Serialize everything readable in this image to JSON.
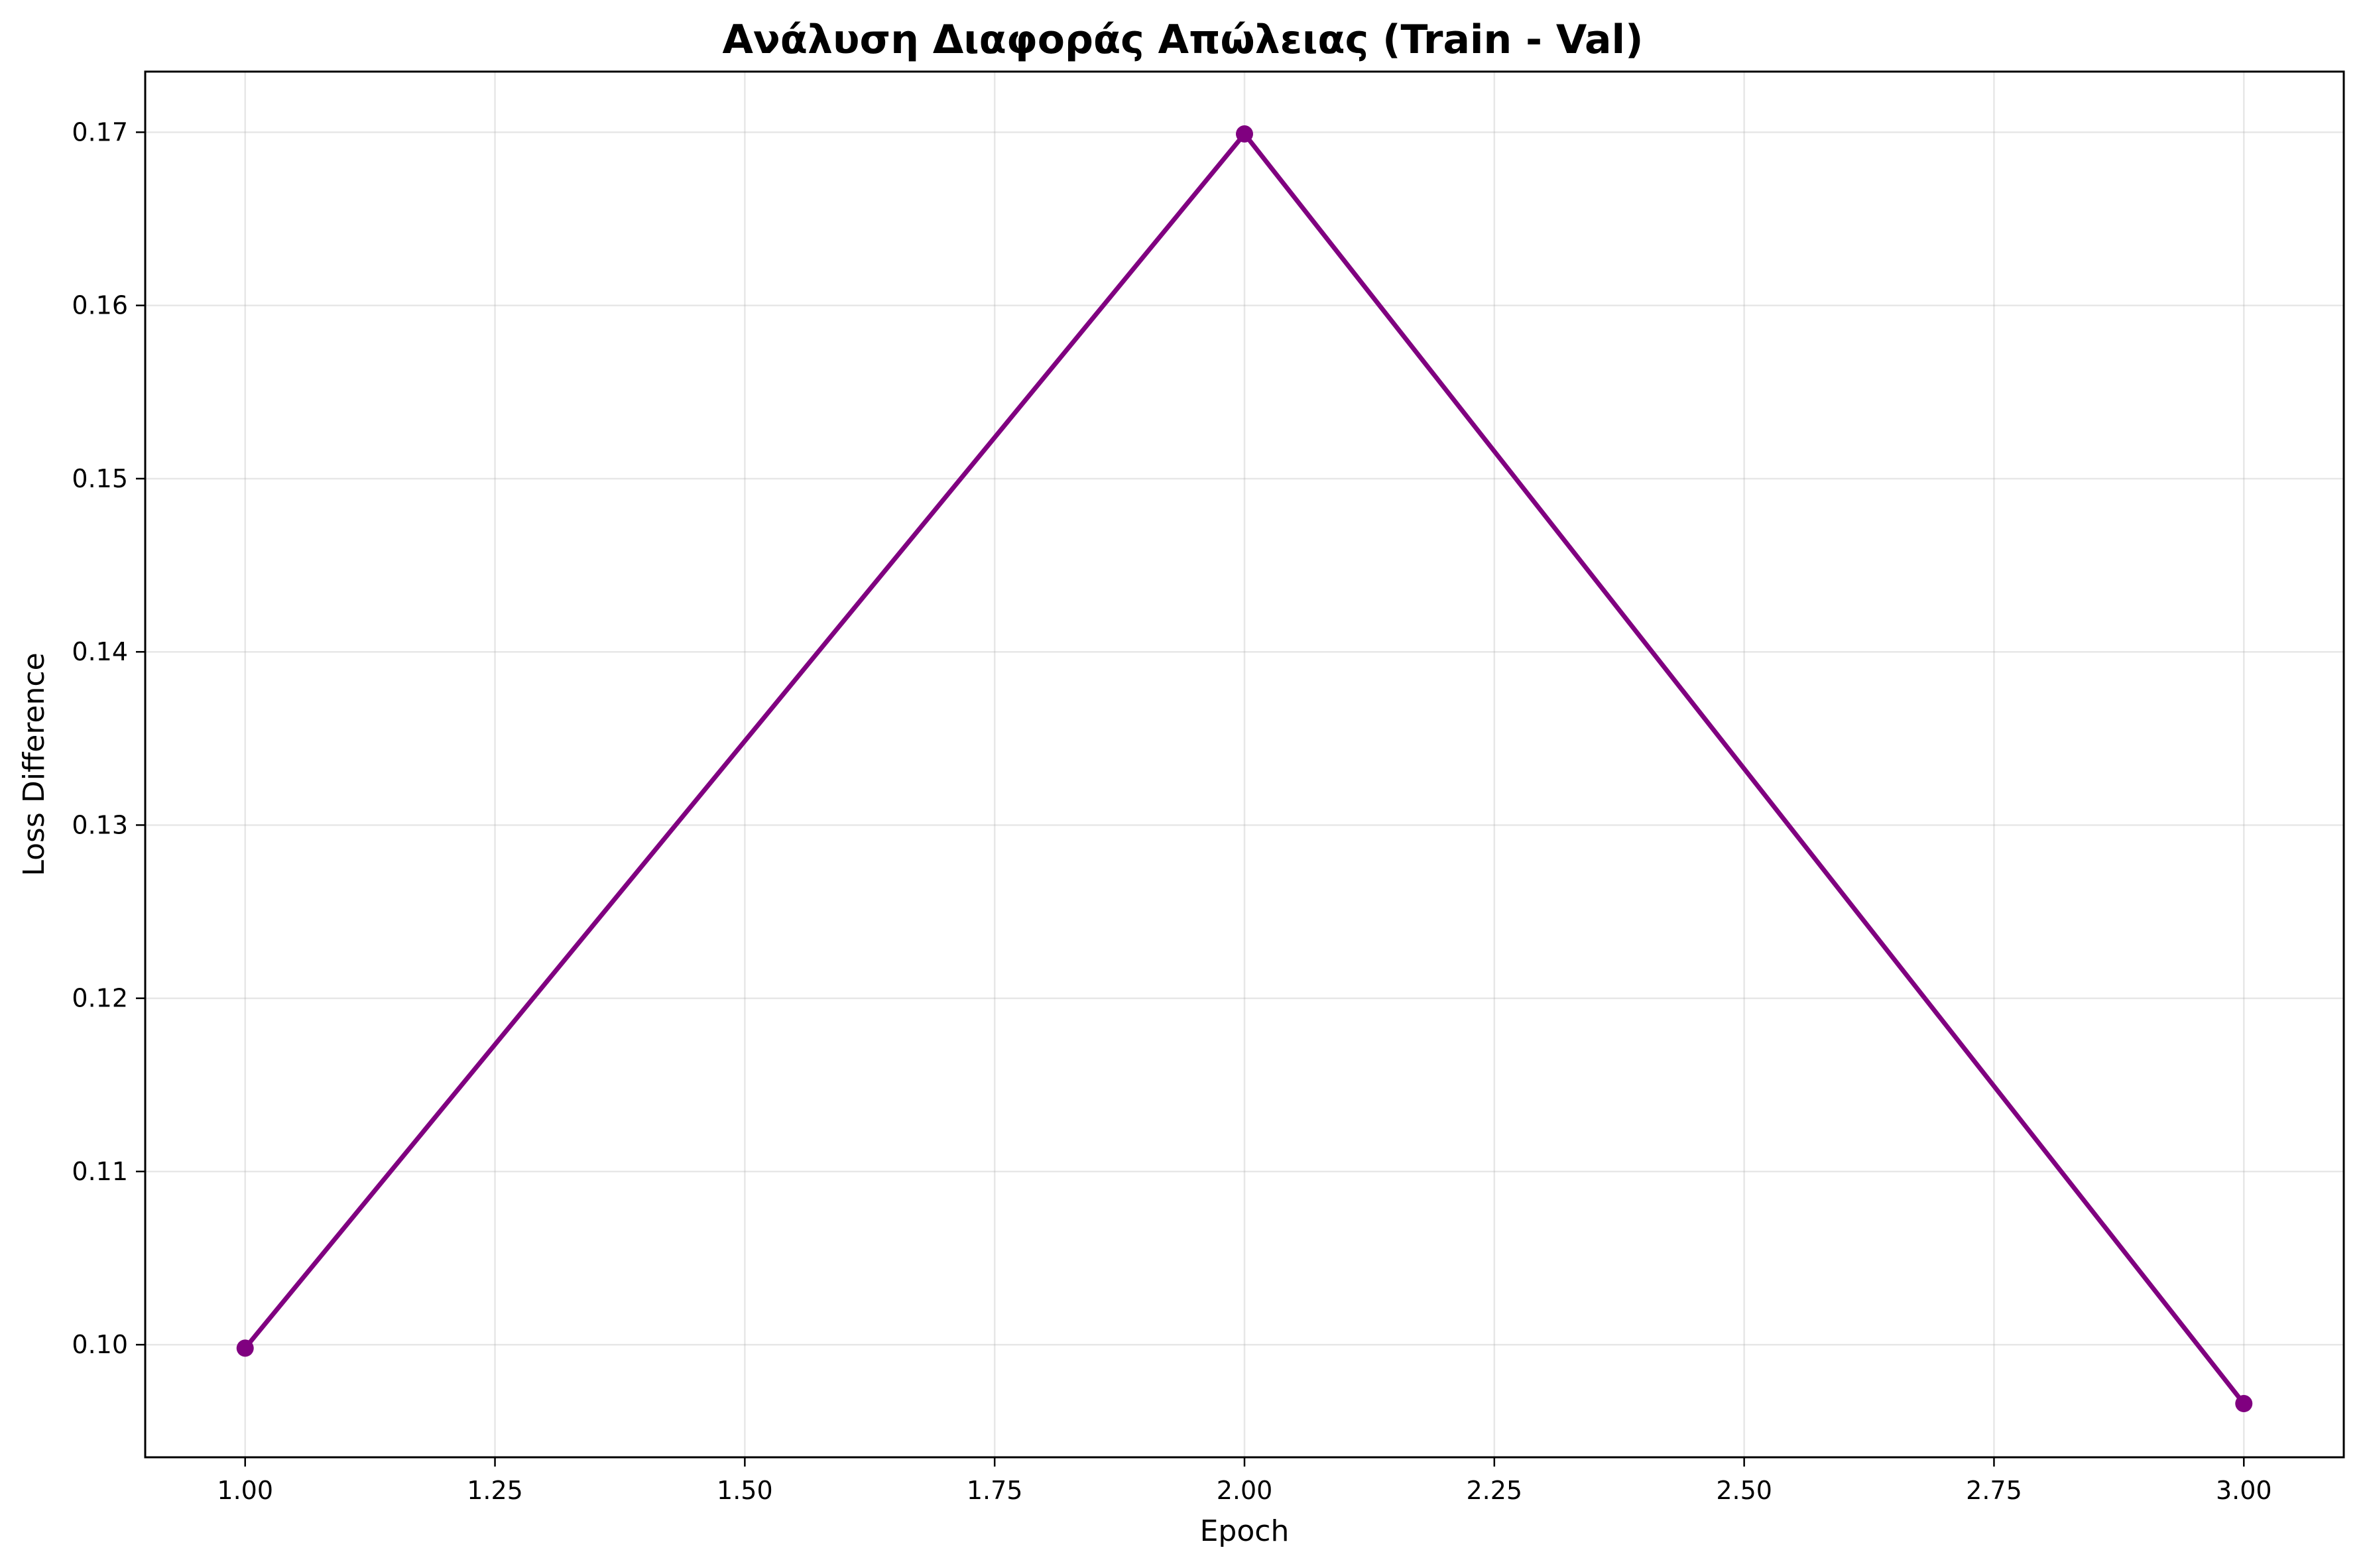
{
  "chart_data": {
    "type": "line",
    "title": "Ανάλυση Διαφοράς Απώλειας (Train - Val)",
    "xlabel": "Epoch",
    "ylabel": "Loss Difference",
    "xlim": [
      0.9,
      3.1
    ],
    "ylim": [
      0.0935,
      0.1735
    ],
    "x_ticks": [
      1.0,
      1.25,
      1.5,
      1.75,
      2.0,
      2.25,
      2.5,
      2.75,
      3.0
    ],
    "x_tick_labels": [
      "1.00",
      "1.25",
      "1.50",
      "1.75",
      "2.00",
      "2.25",
      "2.50",
      "2.75",
      "3.00"
    ],
    "y_ticks": [
      0.1,
      0.11,
      0.12,
      0.13,
      0.14,
      0.15,
      0.16,
      0.17
    ],
    "y_tick_labels": [
      "0.10",
      "0.11",
      "0.12",
      "0.13",
      "0.14",
      "0.15",
      "0.16",
      "0.17"
    ],
    "grid": true,
    "series": [
      {
        "x": [
          1,
          2,
          3
        ],
        "values": [
          0.0998,
          0.1699,
          0.0966
        ],
        "color": "#800080",
        "marker": "circle"
      }
    ]
  }
}
